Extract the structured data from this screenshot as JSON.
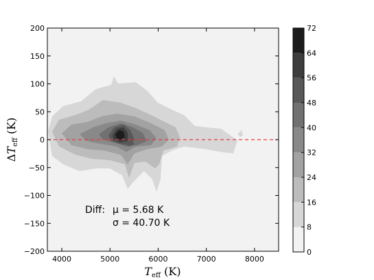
{
  "chart_data": {
    "type": "heatmap",
    "style": "filled-contour",
    "title": "",
    "xlabel": "T_eff (K)",
    "ylabel": "ΔT_eff (K)",
    "xlim": [
      3700,
      8500
    ],
    "ylim": [
      -200,
      200
    ],
    "x_ticks": [
      4000,
      5000,
      6000,
      7000,
      8000
    ],
    "y_ticks": [
      200,
      150,
      100,
      50,
      0,
      -50,
      -100,
      -150,
      -200
    ],
    "grid": false,
    "colormap": "greys",
    "colorbar": {
      "levels": [
        0,
        8,
        16,
        24,
        32,
        40,
        48,
        56,
        64,
        72
      ],
      "ticks": [
        72,
        64,
        56,
        48,
        40,
        32,
        24,
        16,
        8,
        0
      ],
      "colors": [
        "#f2f2f2",
        "#d7d7d7",
        "#bcbcbc",
        "#a2a2a2",
        "#898989",
        "#717171",
        "#585858",
        "#3d3d3d",
        "#1c1c1c"
      ]
    },
    "reference_line": {
      "y": 0,
      "color": "#e8393e",
      "style": "dashed"
    },
    "density_peaks": [
      {
        "x": 5200,
        "y": 5,
        "peak": 70
      },
      {
        "x": 5400,
        "y": -8,
        "peak": 40
      },
      {
        "x": 4700,
        "y": 0,
        "peak": 28
      },
      {
        "x": 6200,
        "y": 2,
        "peak": 18
      }
    ],
    "annotations": {
      "diff_label": "Diff:",
      "mu_line": "μ = 5.68 K",
      "sigma_line": "σ = 40.70 K"
    }
  }
}
